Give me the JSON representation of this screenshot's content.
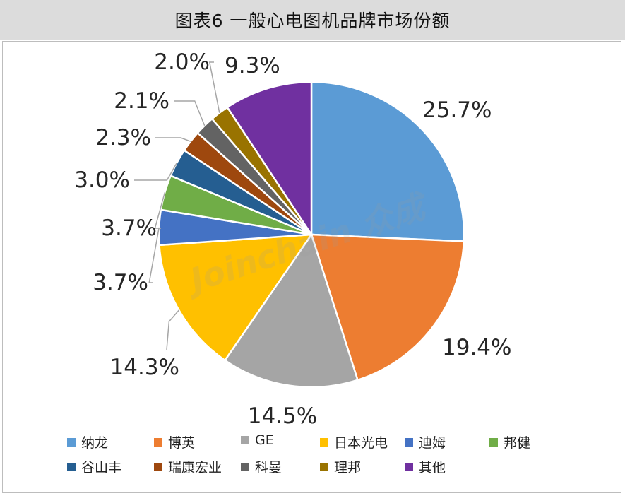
{
  "title": "图表6  一般心电图机品牌市场份额",
  "watermark": "Joinchain 众成",
  "chart_data": {
    "type": "pie",
    "title": "图表6  一般心电图机品牌市场份额",
    "start_angle_deg": 0,
    "direction": "clockwise",
    "legend_position": "bottom",
    "slices": [
      {
        "label": "纳龙",
        "value": 25.7,
        "display": "25.7%",
        "color": "#5B9BD5"
      },
      {
        "label": "博英",
        "value": 19.4,
        "display": "19.4%",
        "color": "#ED7D31"
      },
      {
        "label": "GE",
        "value": 14.5,
        "display": "14.5%",
        "color": "#A5A5A5"
      },
      {
        "label": "日本光电",
        "value": 14.3,
        "display": "14.3%",
        "color": "#FFC000"
      },
      {
        "label": "迪姆",
        "value": 3.7,
        "display": "3.7%",
        "color": "#4472C4"
      },
      {
        "label": "邦健",
        "value": 3.7,
        "display": "3.7%",
        "color": "#70AD47"
      },
      {
        "label": "谷山丰",
        "value": 3.0,
        "display": "3.0%",
        "color": "#255E91"
      },
      {
        "label": "瑞康宏业",
        "value": 2.3,
        "display": "2.3%",
        "color": "#9E480E"
      },
      {
        "label": "科曼",
        "value": 2.1,
        "display": "2.1%",
        "color": "#636363"
      },
      {
        "label": "理邦",
        "value": 2.0,
        "display": "2.0%",
        "color": "#997300"
      },
      {
        "label": "其他",
        "value": 9.3,
        "display": "9.3%",
        "color": "#7030A0"
      }
    ]
  }
}
